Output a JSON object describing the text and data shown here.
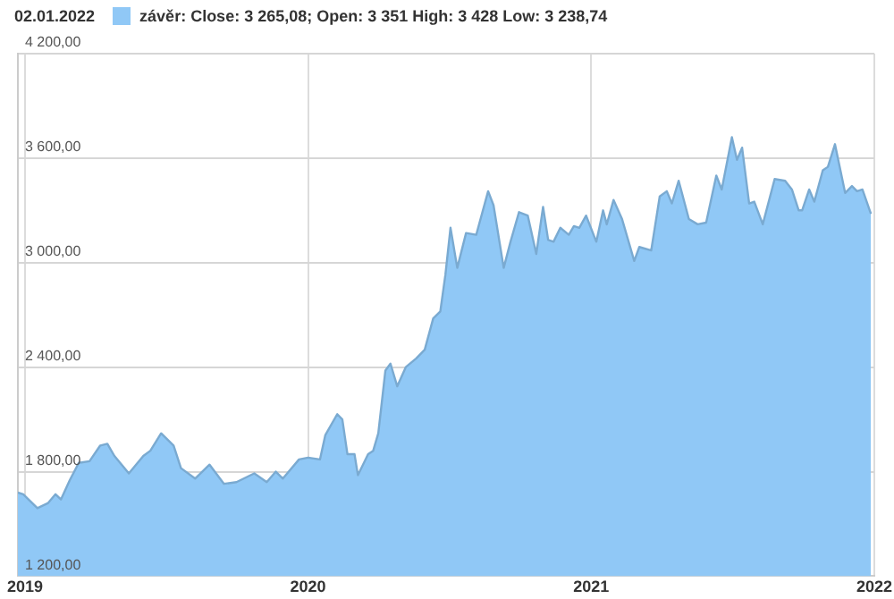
{
  "chart_data": {
    "type": "area",
    "title": "02.01.2022",
    "legend": "top left",
    "grid": true,
    "marker": "none",
    "xlim": [
      2018.975,
      2022
    ],
    "xticks": [
      2019,
      2020,
      2021,
      2022
    ],
    "ylim": [
      1200,
      4200
    ],
    "yticks": [
      {
        "value": 1200,
        "label": "1 200,00"
      },
      {
        "value": 1800,
        "label": "1 800,00"
      },
      {
        "value": 2400,
        "label": "2 400,00"
      },
      {
        "value": 3000,
        "label": "3 000,00"
      },
      {
        "value": 3600,
        "label": "3 600,00"
      },
      {
        "value": 4200,
        "label": "4 200,00"
      }
    ],
    "series": [
      {
        "name": "závěr: Close: 3 265,08; Open: 3 351 High: 3 428 Low: 3 238,74",
        "color": "#90c8f6",
        "x": [
          2018.975,
          2018.994,
          2019.044,
          2019.082,
          2019.108,
          2019.127,
          2019.158,
          2019.19,
          2019.228,
          2019.266,
          2019.291,
          2019.316,
          2019.367,
          2019.418,
          2019.443,
          2019.481,
          2019.525,
          2019.551,
          2019.601,
          2019.652,
          2019.703,
          2019.747,
          2019.81,
          2019.854,
          2019.886,
          2019.911,
          2019.968,
          2020.0,
          2020.042,
          2020.061,
          2020.103,
          2020.121,
          2020.139,
          2020.164,
          2020.176,
          2020.212,
          2020.23,
          2020.248,
          2020.273,
          2020.291,
          2020.315,
          2020.345,
          2020.382,
          2020.412,
          2020.442,
          2020.467,
          2020.485,
          2020.503,
          2020.527,
          2020.558,
          2020.594,
          2020.636,
          2020.655,
          2020.691,
          2020.715,
          2020.745,
          2020.776,
          2020.806,
          2020.83,
          2020.848,
          2020.867,
          2020.891,
          2020.921,
          2020.939,
          2020.958,
          2020.982,
          2021.018,
          2021.042,
          2021.055,
          2021.079,
          2021.109,
          2021.152,
          2021.17,
          2021.212,
          2021.242,
          2021.267,
          2021.285,
          2021.309,
          2021.345,
          2021.376,
          2021.406,
          2021.442,
          2021.461,
          2021.497,
          2021.515,
          2021.533,
          2021.558,
          2021.576,
          2021.606,
          2021.648,
          2021.685,
          2021.709,
          2021.733,
          2021.745,
          2021.77,
          2021.788,
          2021.818,
          2021.836,
          2021.861,
          2021.897,
          2021.921,
          2021.939,
          2021.958,
          2021.988
        ],
        "values": [
          1680,
          1670,
          1590,
          1620,
          1670,
          1640,
          1750,
          1850,
          1860,
          1950,
          1960,
          1890,
          1790,
          1890,
          1920,
          2020,
          1950,
          1820,
          1760,
          1840,
          1730,
          1740,
          1790,
          1740,
          1800,
          1760,
          1870,
          1880,
          1870,
          2010,
          2130,
          2100,
          1900,
          1900,
          1780,
          1900,
          1920,
          2020,
          2380,
          2420,
          2290,
          2400,
          2450,
          2500,
          2680,
          2720,
          2930,
          3200,
          2970,
          3170,
          3160,
          3410,
          3330,
          2970,
          3120,
          3290,
          3270,
          3050,
          3320,
          3130,
          3120,
          3200,
          3160,
          3210,
          3200,
          3270,
          3120,
          3300,
          3220,
          3360,
          3250,
          3010,
          3090,
          3070,
          3380,
          3410,
          3340,
          3470,
          3250,
          3220,
          3230,
          3500,
          3420,
          3720,
          3590,
          3660,
          3340,
          3350,
          3220,
          3480,
          3470,
          3420,
          3300,
          3300,
          3420,
          3350,
          3530,
          3550,
          3680,
          3400,
          3440,
          3410,
          3420,
          3280
        ]
      }
    ]
  }
}
